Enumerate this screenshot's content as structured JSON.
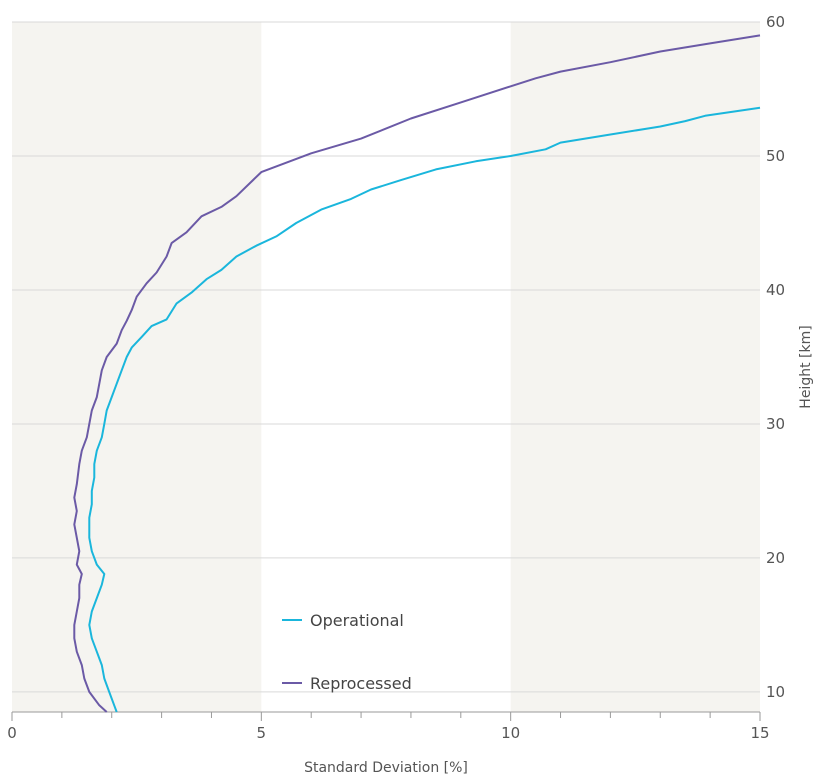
{
  "chart_data": {
    "type": "line",
    "title": "",
    "xlabel": "Standard Deviation [%]",
    "ylabel": "Height [km]",
    "xlim": [
      0,
      15
    ],
    "ylim": [
      8.5,
      60
    ],
    "xticks": [
      0,
      5,
      10,
      15
    ],
    "yticks": [
      10,
      20,
      30,
      40,
      50,
      60
    ],
    "grid": "horizontal",
    "legend_position": "bottom-center",
    "background_bands": [
      [
        0,
        5
      ],
      [
        10,
        15
      ]
    ],
    "colors": {
      "band": "#f5f4f0",
      "grid": "#d9d9d9",
      "axis": "#9a9a9a"
    },
    "series": [
      {
        "name": "Operational",
        "color": "#1ab6dc",
        "points": [
          [
            2.1,
            8.5
          ],
          [
            2.05,
            9
          ],
          [
            1.95,
            10
          ],
          [
            1.85,
            11
          ],
          [
            1.8,
            12
          ],
          [
            1.75,
            12.5
          ],
          [
            1.7,
            13
          ],
          [
            1.6,
            14
          ],
          [
            1.55,
            15
          ],
          [
            1.6,
            16
          ],
          [
            1.7,
            17
          ],
          [
            1.8,
            18
          ],
          [
            1.85,
            18.8
          ],
          [
            1.7,
            19.5
          ],
          [
            1.6,
            20.5
          ],
          [
            1.55,
            21.5
          ],
          [
            1.55,
            23
          ],
          [
            1.6,
            24
          ],
          [
            1.6,
            25
          ],
          [
            1.65,
            26
          ],
          [
            1.65,
            27
          ],
          [
            1.7,
            28
          ],
          [
            1.8,
            29
          ],
          [
            1.85,
            30
          ],
          [
            1.9,
            31
          ],
          [
            2.0,
            32
          ],
          [
            2.1,
            33
          ],
          [
            2.2,
            34
          ],
          [
            2.3,
            35
          ],
          [
            2.4,
            35.7
          ],
          [
            2.6,
            36.5
          ],
          [
            2.8,
            37.3
          ],
          [
            3.1,
            37.8
          ],
          [
            3.3,
            39
          ],
          [
            3.6,
            39.8
          ],
          [
            3.9,
            40.8
          ],
          [
            4.2,
            41.5
          ],
          [
            4.5,
            42.5
          ],
          [
            4.9,
            43.3
          ],
          [
            5.3,
            44
          ],
          [
            5.7,
            45
          ],
          [
            6.2,
            46
          ],
          [
            6.8,
            46.8
          ],
          [
            7.2,
            47.5
          ],
          [
            7.8,
            48.2
          ],
          [
            8.5,
            49
          ],
          [
            9.3,
            49.6
          ],
          [
            10.0,
            50
          ],
          [
            10.7,
            50.5
          ],
          [
            11.0,
            51
          ],
          [
            12.0,
            51.6
          ],
          [
            13.0,
            52.2
          ],
          [
            13.5,
            52.6
          ],
          [
            13.9,
            53.0
          ],
          [
            15.0,
            53.6
          ]
        ]
      },
      {
        "name": "Reprocessed",
        "color": "#6b5aa6",
        "points": [
          [
            1.9,
            8.5
          ],
          [
            1.75,
            9
          ],
          [
            1.55,
            10
          ],
          [
            1.45,
            11
          ],
          [
            1.4,
            12
          ],
          [
            1.3,
            13
          ],
          [
            1.25,
            14
          ],
          [
            1.25,
            15
          ],
          [
            1.3,
            16
          ],
          [
            1.35,
            17
          ],
          [
            1.35,
            18
          ],
          [
            1.4,
            18.8
          ],
          [
            1.3,
            19.5
          ],
          [
            1.35,
            20.5
          ],
          [
            1.3,
            21.5
          ],
          [
            1.25,
            22.5
          ],
          [
            1.3,
            23.5
          ],
          [
            1.25,
            24.5
          ],
          [
            1.3,
            25.5
          ],
          [
            1.35,
            27
          ],
          [
            1.4,
            28
          ],
          [
            1.5,
            29
          ],
          [
            1.55,
            30
          ],
          [
            1.6,
            31
          ],
          [
            1.7,
            32
          ],
          [
            1.75,
            33
          ],
          [
            1.8,
            34
          ],
          [
            1.9,
            35
          ],
          [
            2.1,
            36
          ],
          [
            2.2,
            37
          ],
          [
            2.3,
            37.7
          ],
          [
            2.4,
            38.5
          ],
          [
            2.5,
            39.5
          ],
          [
            2.7,
            40.5
          ],
          [
            2.9,
            41.3
          ],
          [
            3.1,
            42.5
          ],
          [
            3.2,
            43.5
          ],
          [
            3.5,
            44.3
          ],
          [
            3.8,
            45.5
          ],
          [
            4.2,
            46.2
          ],
          [
            4.5,
            47
          ],
          [
            5.0,
            48.8
          ],
          [
            6.0,
            50.2
          ],
          [
            7.0,
            51.3
          ],
          [
            8.0,
            52.8
          ],
          [
            9.0,
            54
          ],
          [
            10.0,
            55.2
          ],
          [
            10.5,
            55.8
          ],
          [
            11.0,
            56.3
          ],
          [
            12.0,
            57
          ],
          [
            13.0,
            57.8
          ],
          [
            14.0,
            58.4
          ],
          [
            15.0,
            59
          ]
        ]
      }
    ]
  }
}
